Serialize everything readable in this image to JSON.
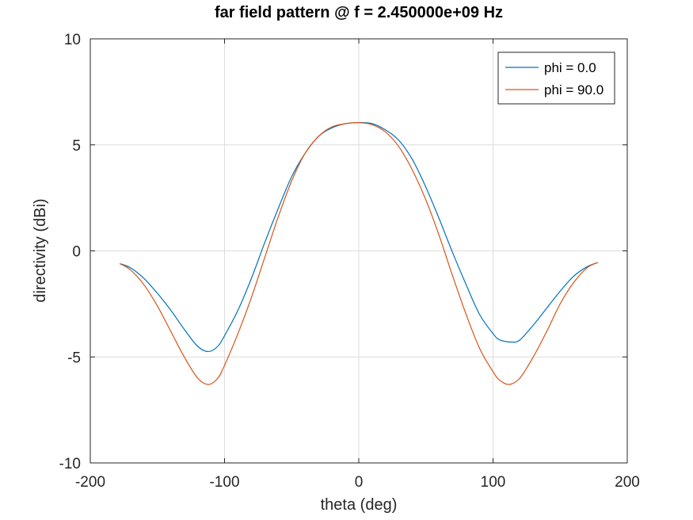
{
  "chart_data": {
    "type": "line",
    "title": "far field pattern @ f = 2.450000e+09 Hz",
    "xlabel": "theta (deg)",
    "ylabel": "directivity (dBi)",
    "xlim": [
      -200,
      200
    ],
    "ylim": [
      -10,
      10
    ],
    "xticks": [
      -200,
      -100,
      0,
      100,
      200
    ],
    "yticks": [
      -10,
      -5,
      0,
      5,
      10
    ],
    "grid": true,
    "legend_position": "top-right",
    "series": [
      {
        "name": "phi = 0.0",
        "color": "#0072bd",
        "x": [
          -178,
          -170,
          -160,
          -150,
          -140,
          -130,
          -120,
          -112,
          -105,
          -100,
          -90,
          -80,
          -70,
          -60,
          -50,
          -40,
          -30,
          -20,
          -10,
          0,
          10,
          20,
          30,
          40,
          50,
          60,
          70,
          80,
          90,
          100,
          105,
          114,
          120,
          130,
          140,
          150,
          160,
          170,
          178
        ],
        "values": [
          -0.6,
          -0.8,
          -1.3,
          -2.0,
          -2.8,
          -3.7,
          -4.5,
          -4.75,
          -4.5,
          -4.0,
          -2.8,
          -1.3,
          0.4,
          2.0,
          3.5,
          4.6,
          5.4,
          5.8,
          6.0,
          6.05,
          6.0,
          5.7,
          5.2,
          4.3,
          3.0,
          1.5,
          -0.1,
          -1.6,
          -3.0,
          -3.9,
          -4.2,
          -4.3,
          -4.2,
          -3.5,
          -2.7,
          -1.9,
          -1.2,
          -0.75,
          -0.55
        ]
      },
      {
        "name": "phi = 90.0",
        "color": "#d95319",
        "x": [
          -178,
          -170,
          -160,
          -150,
          -140,
          -130,
          -120,
          -112,
          -105,
          -100,
          -90,
          -80,
          -70,
          -60,
          -50,
          -40,
          -30,
          -20,
          -10,
          0,
          10,
          20,
          30,
          40,
          50,
          60,
          70,
          80,
          90,
          100,
          105,
          112,
          120,
          130,
          140,
          150,
          160,
          170,
          178
        ],
        "values": [
          -0.6,
          -0.9,
          -1.6,
          -2.6,
          -3.8,
          -5.0,
          -6.0,
          -6.3,
          -6.0,
          -5.4,
          -3.9,
          -2.2,
          -0.3,
          1.6,
          3.3,
          4.6,
          5.4,
          5.85,
          6.0,
          6.05,
          5.95,
          5.6,
          4.9,
          3.8,
          2.4,
          0.7,
          -1.2,
          -3.0,
          -4.6,
          -5.7,
          -6.1,
          -6.3,
          -6.0,
          -5.0,
          -3.8,
          -2.5,
          -1.5,
          -0.8,
          -0.55
        ]
      }
    ]
  }
}
